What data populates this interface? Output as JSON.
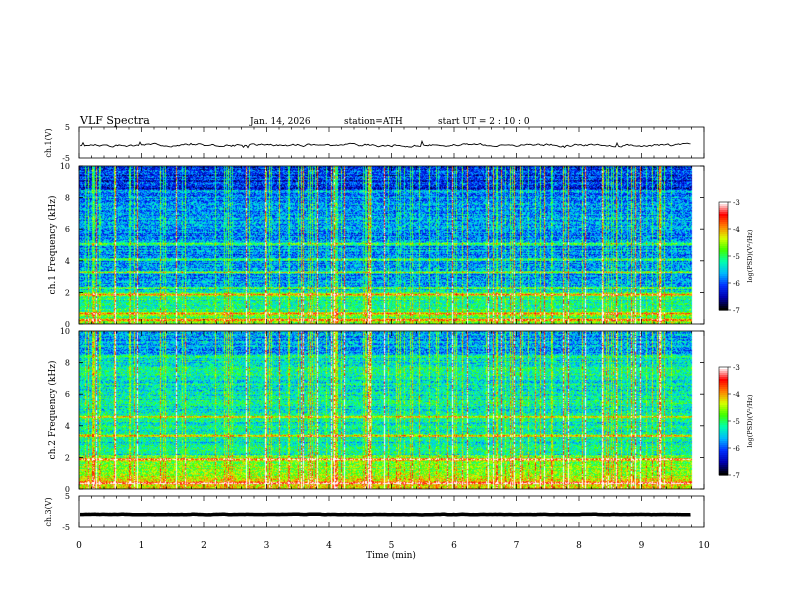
{
  "header": {
    "title": "VLF  Spectra",
    "date": "Jan. 14, 2026",
    "station": "station=ATH",
    "start": "start  UT  =  2 : 10 : 0"
  },
  "colors": {
    "colormap": [
      "#000000",
      "#0000b0",
      "#0030ff",
      "#00b8ff",
      "#00ffb0",
      "#40ff00",
      "#d8ff00",
      "#ff8000",
      "#ff0000",
      "#ffffff"
    ],
    "trace": "#000000"
  },
  "chart_data": [
    {
      "type": "line",
      "name": "ch1-waveform",
      "ylabel": "ch.1(V)",
      "ylim": [
        -5,
        5
      ],
      "yticks": [
        "5",
        "-5"
      ],
      "x_range_min": [
        0,
        9.8
      ],
      "level_v": -0.8,
      "noise_v": 0.6
    },
    {
      "type": "heatmap",
      "name": "ch1-spectrogram",
      "ylabel": "ch.1 Frequency  (kHz)",
      "ylim": [
        0,
        10
      ],
      "yticks": [
        "0",
        "2",
        "4",
        "6",
        "8",
        "10"
      ],
      "x_range_min": [
        0,
        9.8
      ],
      "colorbar": {
        "label": "log(PSD)(V²/Hz)",
        "range": [
          -7,
          -3
        ],
        "ticks": [
          "-3",
          "-4",
          "-5",
          "-6",
          "-7"
        ]
      },
      "bright_bands_khz": [
        0.3,
        0.7,
        1.9,
        2.3,
        3.3,
        4.1,
        5.1
      ],
      "approx_background_logpsd": -5.8
    },
    {
      "type": "heatmap",
      "name": "ch2-spectrogram",
      "ylabel": "ch.2 Frequency  (kHz)",
      "ylim": [
        0,
        10
      ],
      "yticks": [
        "0",
        "2",
        "4",
        "6",
        "8",
        "10"
      ],
      "x_range_min": [
        0,
        9.8
      ],
      "colorbar": {
        "label": "log(PSD)(V²/Hz)",
        "range": [
          -7,
          -3
        ],
        "ticks": [
          "-3",
          "-4",
          "-5",
          "-6",
          "-7"
        ]
      },
      "bright_bands_khz": [
        0.4,
        1.9,
        3.4,
        4.6
      ],
      "approx_background_logpsd": -5.3
    },
    {
      "type": "line",
      "name": "ch3-waveform",
      "ylabel": "ch.3(V)",
      "ylim": [
        -5,
        5
      ],
      "yticks": [
        "5",
        "-5"
      ],
      "x_range_min": [
        0,
        9.8
      ],
      "level_v": -1.0,
      "noise_v": 0.1
    }
  ],
  "xaxis": {
    "label": "Time  (min)",
    "ticks": [
      "0",
      "1",
      "2",
      "3",
      "4",
      "5",
      "6",
      "7",
      "8",
      "9",
      "10"
    ],
    "range": [
      0,
      10
    ]
  }
}
